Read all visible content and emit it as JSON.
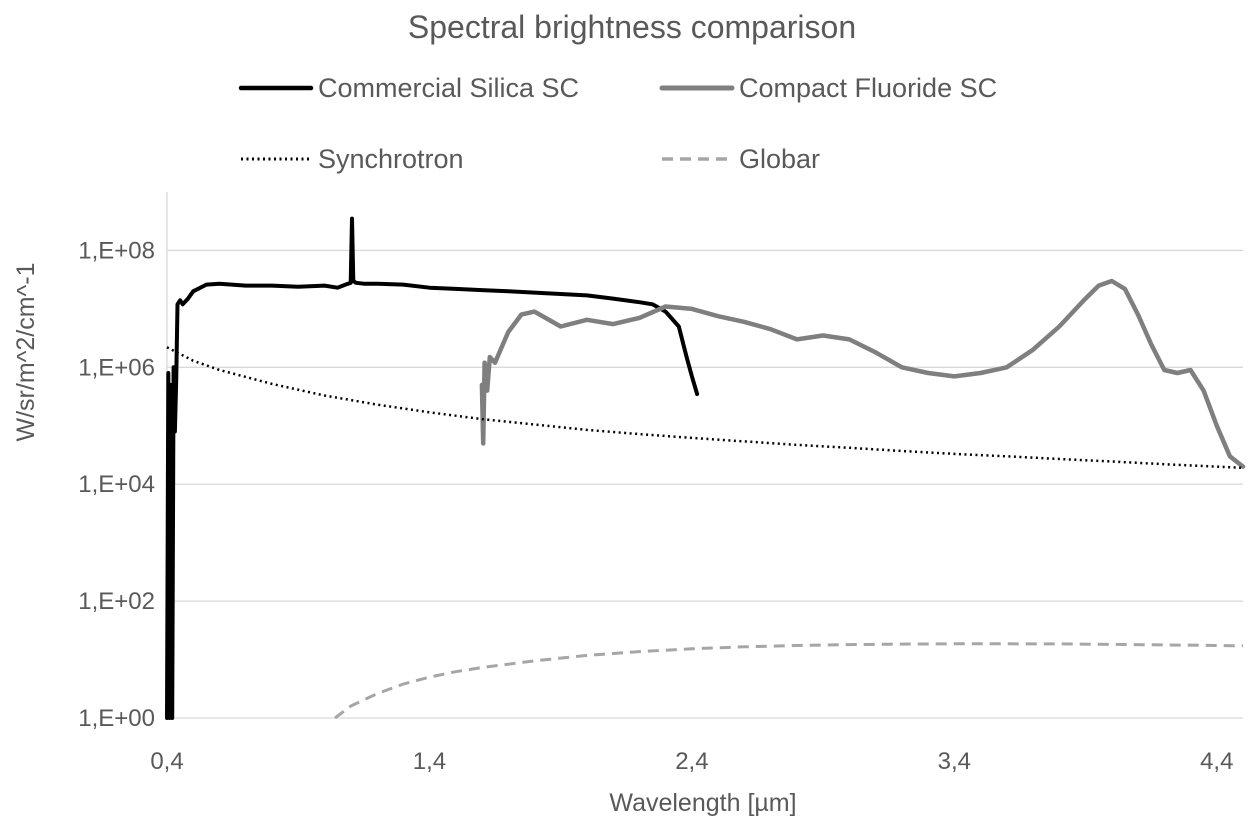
{
  "chart_data": {
    "type": "line",
    "title": "Spectral brightness comparison",
    "xlabel": "Wavelength [µm]",
    "ylabel": "W/sr/m^2/cm^-1",
    "xlim": [
      0.4,
      4.5
    ],
    "ylim": [
      1,
      1000000000
    ],
    "yscale": "log",
    "x_ticks": [
      "0,4",
      "1,4",
      "2,4",
      "3,4",
      "4,4"
    ],
    "x_tick_values": [
      0.4,
      1.4,
      2.4,
      3.4,
      4.4
    ],
    "y_ticks": [
      "1,E+00",
      "1,E+02",
      "1,E+04",
      "1,E+06",
      "1,E+08"
    ],
    "y_tick_values": [
      1,
      100,
      10000,
      1000000,
      100000000
    ],
    "grid": "horizontal major lines",
    "legend_position": "top",
    "series": [
      {
        "name": "Commercial Silica SC",
        "color": "#000000",
        "style": "solid",
        "x": [
          0.4,
          0.405,
          0.41,
          0.415,
          0.42,
          0.425,
          0.43,
          0.435,
          0.44,
          0.45,
          0.46,
          0.48,
          0.5,
          0.55,
          0.6,
          0.7,
          0.8,
          0.9,
          1.0,
          1.05,
          1.08,
          1.1,
          1.105,
          1.11,
          1.12,
          1.15,
          1.2,
          1.3,
          1.4,
          1.5,
          1.6,
          1.7,
          1.8,
          1.9,
          2.0,
          2.1,
          2.2,
          2.25,
          2.3,
          2.35,
          2.38,
          2.4,
          2.42
        ],
        "y": [
          1,
          800000,
          1,
          500000,
          1,
          1000000,
          80000,
          600000,
          12000000,
          14000000,
          12000000,
          15000000,
          20000000,
          26000000,
          27000000,
          25000000,
          25000000,
          24000000,
          25000000,
          23000000,
          26000000,
          28000000,
          350000000,
          30000000,
          28000000,
          27000000,
          27000000,
          26000000,
          23000000,
          22000000,
          21000000,
          20000000,
          19000000,
          18000000,
          17000000,
          15000000,
          13000000,
          12000000,
          9000000,
          5000000,
          1500000,
          700000,
          350000
        ]
      },
      {
        "name": "Compact Fluoride SC",
        "color": "#7f7f7f",
        "style": "solid",
        "x": [
          1.6,
          1.605,
          1.61,
          1.62,
          1.63,
          1.65,
          1.7,
          1.75,
          1.8,
          1.9,
          2.0,
          2.1,
          2.2,
          2.3,
          2.4,
          2.5,
          2.6,
          2.7,
          2.8,
          2.9,
          3.0,
          3.1,
          3.2,
          3.3,
          3.4,
          3.5,
          3.6,
          3.7,
          3.8,
          3.9,
          3.95,
          4.0,
          4.05,
          4.1,
          4.15,
          4.2,
          4.25,
          4.3,
          4.35,
          4.4,
          4.45,
          4.5
        ],
        "y": [
          500000,
          50000,
          1200000,
          400000,
          1500000,
          1200000,
          4000000,
          8000000,
          9000000,
          5000000,
          6500000,
          5500000,
          7000000,
          11000000,
          10000000,
          7500000,
          6000000,
          4500000,
          3000000,
          3500000,
          3000000,
          1800000,
          1000000,
          800000,
          700000,
          800000,
          1000000,
          2000000,
          5000000,
          15000000,
          25000000,
          30000000,
          22000000,
          8000000,
          2500000,
          900000,
          800000,
          900000,
          400000,
          100000,
          30000,
          20000
        ]
      },
      {
        "name": "Synchrotron",
        "color": "#000000",
        "style": "dotted",
        "x": [
          0.4,
          0.5,
          0.6,
          0.8,
          1.0,
          1.2,
          1.4,
          1.6,
          1.8,
          2.0,
          2.2,
          2.4,
          2.6,
          2.8,
          3.0,
          3.2,
          3.4,
          3.6,
          3.8,
          4.0,
          4.2,
          4.4,
          4.5
        ],
        "y": [
          2200000,
          1300000,
          900000,
          520000,
          330000,
          230000,
          170000,
          130000,
          105000,
          85000,
          72000,
          62000,
          54000,
          47000,
          42000,
          37000,
          33000,
          30000,
          27000,
          24500,
          22000,
          20000,
          19000
        ]
      },
      {
        "name": "Globar",
        "color": "#a6a6a6",
        "style": "dashed",
        "x": [
          1.04,
          1.1,
          1.2,
          1.3,
          1.4,
          1.5,
          1.6,
          1.8,
          2.0,
          2.2,
          2.4,
          2.6,
          2.8,
          3.0,
          3.2,
          3.4,
          3.6,
          3.8,
          4.0,
          4.2,
          4.4,
          4.5
        ],
        "y": [
          1,
          1.6,
          2.6,
          3.8,
          5.0,
          6.2,
          7.3,
          9.5,
          11.8,
          13.7,
          15.3,
          16.5,
          17.4,
          18.0,
          18.4,
          18.6,
          18.6,
          18.5,
          18.2,
          17.8,
          17.4,
          17.2
        ]
      }
    ]
  }
}
